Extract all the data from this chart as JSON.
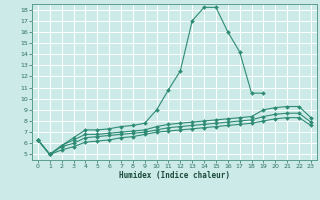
{
  "title": "",
  "xlabel": "Humidex (Indice chaleur)",
  "bg_color": "#cceae8",
  "grid_color": "#ffffff",
  "line_color": "#2e8b74",
  "xlim": [
    -0.5,
    23.5
  ],
  "ylim": [
    4.5,
    18.5
  ],
  "xticks": [
    0,
    1,
    2,
    3,
    4,
    5,
    6,
    7,
    8,
    9,
    10,
    11,
    12,
    13,
    14,
    15,
    16,
    17,
    18,
    19,
    20,
    21,
    22,
    23
  ],
  "yticks": [
    5,
    6,
    7,
    8,
    9,
    10,
    11,
    12,
    13,
    14,
    15,
    16,
    17,
    18
  ],
  "curves": [
    {
      "x": [
        0,
        1,
        2,
        3,
        4,
        5,
        6,
        7,
        8,
        9,
        10,
        11,
        12,
        13,
        14,
        15,
        16,
        17,
        18,
        19
      ],
      "y": [
        6.3,
        5.0,
        5.8,
        6.5,
        7.2,
        7.2,
        7.3,
        7.5,
        7.6,
        7.8,
        9.0,
        10.8,
        12.5,
        17.0,
        18.2,
        18.2,
        16.0,
        14.2,
        10.5,
        10.5
      ]
    },
    {
      "x": [
        0,
        1,
        2,
        3,
        4,
        5,
        6,
        7,
        8,
        9,
        10,
        11,
        12,
        13,
        14,
        15,
        16,
        17,
        18,
        19,
        20,
        21,
        22,
        23
      ],
      "y": [
        6.3,
        5.0,
        5.8,
        6.3,
        6.8,
        6.8,
        6.9,
        7.0,
        7.1,
        7.2,
        7.5,
        7.7,
        7.8,
        7.9,
        8.0,
        8.1,
        8.2,
        8.3,
        8.4,
        9.0,
        9.2,
        9.3,
        9.3,
        8.3
      ]
    },
    {
      "x": [
        0,
        1,
        2,
        3,
        4,
        5,
        6,
        7,
        8,
        9,
        10,
        11,
        12,
        13,
        14,
        15,
        16,
        17,
        18,
        19,
        20,
        21,
        22,
        23
      ],
      "y": [
        6.3,
        5.0,
        5.7,
        6.0,
        6.5,
        6.6,
        6.7,
        6.8,
        6.9,
        7.0,
        7.2,
        7.4,
        7.5,
        7.6,
        7.7,
        7.8,
        7.9,
        8.0,
        8.1,
        8.4,
        8.6,
        8.7,
        8.7,
        7.9
      ]
    },
    {
      "x": [
        0,
        1,
        2,
        3,
        4,
        5,
        6,
        7,
        8,
        9,
        10,
        11,
        12,
        13,
        14,
        15,
        16,
        17,
        18,
        19,
        20,
        21,
        22,
        23
      ],
      "y": [
        6.3,
        5.0,
        5.4,
        5.7,
        6.1,
        6.2,
        6.3,
        6.5,
        6.6,
        6.8,
        7.0,
        7.1,
        7.2,
        7.3,
        7.4,
        7.5,
        7.6,
        7.7,
        7.8,
        8.0,
        8.2,
        8.3,
        8.3,
        7.6
      ]
    }
  ]
}
